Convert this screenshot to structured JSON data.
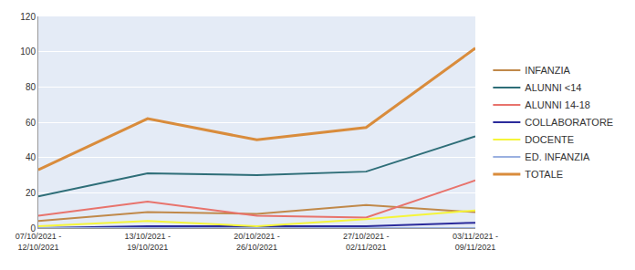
{
  "chart_data": {
    "type": "line",
    "categories": [
      "07/10/2021 - 12/10/2021",
      "13/10/2021 - 19/10/2021",
      "20/10/2021 - 26/10/2021",
      "27/10/2021 - 02/11/2021",
      "03/11/2021 - 09/11/2021"
    ],
    "series": [
      {
        "name": "INFANZIA",
        "color": "#c0894a",
        "values": [
          4,
          9,
          8,
          13,
          9
        ]
      },
      {
        "name": "ALUNNI <14",
        "color": "#2e6e78",
        "values": [
          18,
          31,
          30,
          32,
          52
        ]
      },
      {
        "name": "ALUNNI 14-18",
        "color": "#e8736c",
        "values": [
          7,
          15,
          7,
          6,
          27
        ]
      },
      {
        "name": "COLLABORATORE",
        "color": "#2b2b9b",
        "values": [
          0,
          1,
          1,
          1,
          3
        ]
      },
      {
        "name": "DOCENTE",
        "color": "#f5f53a",
        "values": [
          1,
          4,
          1,
          5,
          10
        ]
      },
      {
        "name": "ED. INFANZIA",
        "color": "#9ab0e0",
        "values": [
          0,
          0,
          0,
          0,
          0
        ]
      },
      {
        "name": "TOTALE",
        "color": "#d98c3c",
        "values": [
          33,
          62,
          50,
          57,
          102
        ]
      }
    ],
    "ylim": [
      0,
      120
    ],
    "yticks": [
      0,
      20,
      40,
      60,
      80,
      100,
      120
    ],
    "grid": true,
    "legend": "right"
  }
}
